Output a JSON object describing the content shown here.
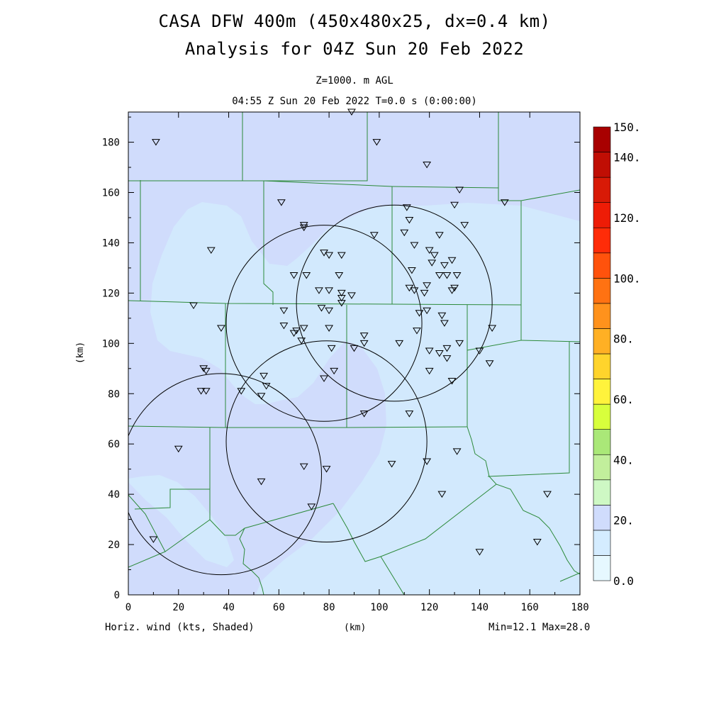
{
  "title": {
    "line1": "CASA DFW 400m (450x480x25, dx=0.4 km)",
    "line2": "Analysis for 04Z Sun 20 Feb 2022"
  },
  "subtitle": {
    "level": "Z=1000. m AGL",
    "time": "04:55 Z Sun 20 Feb 2022    T=0.0 s (0:00:00)"
  },
  "axes": {
    "xlabel": "(km)",
    "ylabel": "(km)",
    "xlim": [
      0,
      180
    ],
    "ylim": [
      0,
      192
    ],
    "xticks": [
      "0",
      "20",
      "40",
      "60",
      "80",
      "100",
      "120",
      "140",
      "160",
      "180"
    ],
    "yticks": [
      "0",
      "20",
      "40",
      "60",
      "80",
      "100",
      "120",
      "140",
      "160",
      "180"
    ]
  },
  "footer": {
    "field": "Horiz. wind (kts, Shaded)",
    "minmax": "Min=12.1 Max=28.0"
  },
  "colorbar": {
    "labels": [
      "0.0",
      "20.",
      "40.",
      "60.",
      "80.",
      "100.",
      "120.",
      "140.",
      "150."
    ],
    "colors": [
      "#e6f8ff",
      "#d4ecff",
      "#d0dcfc",
      "#cef8c4",
      "#c2ef9c",
      "#aae878",
      "#d8ff3c",
      "#fff33c",
      "#ffd42c",
      "#ffb024",
      "#ff921c",
      "#ff7212",
      "#ff520c",
      "#ff2c08",
      "#ee1c06",
      "#d81a06",
      "#c00e04",
      "#a80000"
    ]
  },
  "chart_data": {
    "type": "heatmap",
    "field": "Horizontal wind speed (kts)",
    "xlabel": "(km)",
    "ylabel": "(km)",
    "xlim": [
      0,
      180
    ],
    "ylim": [
      0,
      192
    ],
    "min": 12.1,
    "max": 28.0,
    "radar_rings_km": [
      {
        "cx": 78,
        "cy": 108,
        "r": 39
      },
      {
        "cx": 106,
        "cy": 116,
        "r": 39
      },
      {
        "cx": 79,
        "cy": 61,
        "r": 40
      },
      {
        "cx": 37,
        "cy": 48,
        "r": 40
      }
    ],
    "stations_km": [
      [
        11,
        180
      ],
      [
        89,
        192
      ],
      [
        99,
        180
      ],
      [
        119,
        171
      ],
      [
        132,
        161
      ],
      [
        150,
        156
      ],
      [
        61,
        156
      ],
      [
        70,
        147
      ],
      [
        70,
        146
      ],
      [
        111,
        154
      ],
      [
        112,
        149
      ],
      [
        130,
        155
      ],
      [
        134,
        147
      ],
      [
        98,
        143
      ],
      [
        110,
        144
      ],
      [
        124,
        143
      ],
      [
        114,
        139
      ],
      [
        33,
        137
      ],
      [
        78,
        136
      ],
      [
        80,
        135
      ],
      [
        85,
        135
      ],
      [
        120,
        137
      ],
      [
        122,
        135
      ],
      [
        126,
        131
      ],
      [
        129,
        133
      ],
      [
        121,
        132
      ],
      [
        113,
        129
      ],
      [
        66,
        127
      ],
      [
        71,
        127
      ],
      [
        84,
        127
      ],
      [
        124,
        127
      ],
      [
        127,
        127
      ],
      [
        131,
        127
      ],
      [
        119,
        123
      ],
      [
        130,
        122
      ],
      [
        129,
        121
      ],
      [
        112,
        122
      ],
      [
        114,
        121
      ],
      [
        118,
        120
      ],
      [
        76,
        121
      ],
      [
        80,
        121
      ],
      [
        85,
        120
      ],
      [
        89,
        119
      ],
      [
        85,
        118
      ],
      [
        85,
        116
      ],
      [
        26,
        115
      ],
      [
        77,
        114
      ],
      [
        80,
        113
      ],
      [
        62,
        113
      ],
      [
        116,
        112
      ],
      [
        119,
        113
      ],
      [
        125,
        111
      ],
      [
        126,
        108
      ],
      [
        62,
        107
      ],
      [
        37,
        106
      ],
      [
        70,
        106
      ],
      [
        80,
        106
      ],
      [
        67,
        105
      ],
      [
        115,
        105
      ],
      [
        145,
        106
      ],
      [
        66,
        104
      ],
      [
        69,
        101
      ],
      [
        94,
        103
      ],
      [
        108,
        100
      ],
      [
        94,
        100
      ],
      [
        132,
        100
      ],
      [
        81,
        98
      ],
      [
        90,
        98
      ],
      [
        120,
        97
      ],
      [
        124,
        96
      ],
      [
        127,
        98
      ],
      [
        127,
        94
      ],
      [
        140,
        97
      ],
      [
        144,
        92
      ],
      [
        30,
        90
      ],
      [
        31,
        89
      ],
      [
        82,
        89
      ],
      [
        120,
        89
      ],
      [
        54,
        87
      ],
      [
        78,
        86
      ],
      [
        129,
        85
      ],
      [
        55,
        83
      ],
      [
        45,
        81
      ],
      [
        29,
        81
      ],
      [
        31,
        81
      ],
      [
        53,
        79
      ],
      [
        112,
        72
      ],
      [
        94,
        72
      ],
      [
        20,
        58
      ],
      [
        131,
        57
      ],
      [
        119,
        53
      ],
      [
        105,
        52
      ],
      [
        70,
        51
      ],
      [
        79,
        50
      ],
      [
        53,
        45
      ],
      [
        125,
        40
      ],
      [
        167,
        40
      ],
      [
        73,
        35
      ],
      [
        10,
        22
      ],
      [
        163,
        21
      ],
      [
        140,
        17
      ]
    ]
  }
}
